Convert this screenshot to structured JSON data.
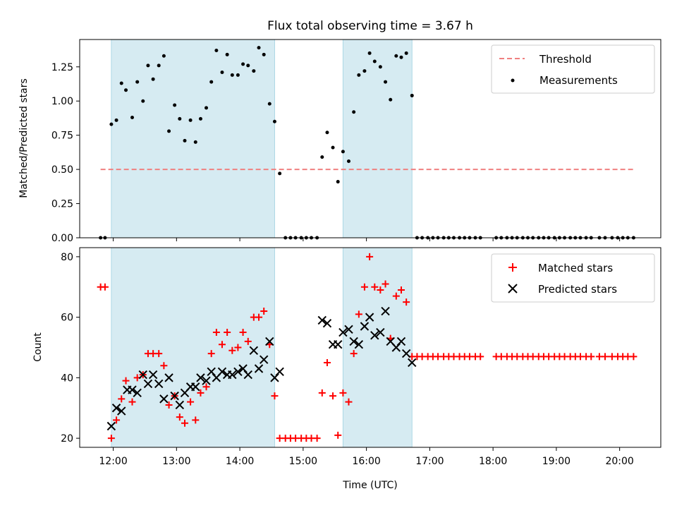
{
  "chart_data": [
    {
      "type": "scatter",
      "title": "Flux total observing time = 3.67 h",
      "ylabel": "Matched/Predicted stars",
      "xlabel": "",
      "xlim_hours": [
        11.47,
        20.65
      ],
      "ylim": [
        0,
        1.45
      ],
      "yticks": [
        "0.00",
        "0.25",
        "0.50",
        "0.75",
        "1.00",
        "1.25"
      ],
      "ytick_values": [
        0,
        0.25,
        0.5,
        0.75,
        1.0,
        1.25
      ],
      "shaded_intervals_hours": [
        [
          11.97,
          14.55
        ],
        [
          15.63,
          16.72
        ]
      ],
      "threshold": {
        "name": "Threshold",
        "value": 0.5,
        "x_range_hours": [
          11.8,
          20.25
        ],
        "color": "#f08080"
      },
      "legend": {
        "position": "top-right",
        "entries": [
          "Threshold",
          "Measurements"
        ]
      },
      "series": [
        {
          "name": "Measurements",
          "color": "#000000",
          "x": [
            11.8,
            11.87,
            11.97,
            12.05,
            12.13,
            12.2,
            12.3,
            12.38,
            12.47,
            12.55,
            12.63,
            12.72,
            12.8,
            12.88,
            12.97,
            13.05,
            13.13,
            13.22,
            13.3,
            13.38,
            13.47,
            13.55,
            13.63,
            13.72,
            13.8,
            13.88,
            13.97,
            14.05,
            14.13,
            14.22,
            14.3,
            14.38,
            14.47,
            14.55,
            14.63,
            14.72,
            14.8,
            14.88,
            14.97,
            15.05,
            15.13,
            15.22,
            15.3,
            15.38,
            15.47,
            15.55,
            15.63,
            15.72,
            15.8,
            15.88,
            15.97,
            16.05,
            16.13,
            16.22,
            16.3,
            16.38,
            16.47,
            16.55,
            16.63,
            16.72,
            16.8,
            16.88,
            16.97,
            17.05,
            17.13,
            17.22,
            17.3,
            17.38,
            17.47,
            17.55,
            17.63,
            17.72,
            17.8,
            18.05,
            18.13,
            18.22,
            18.3,
            18.38,
            18.47,
            18.55,
            18.63,
            18.72,
            18.8,
            18.88,
            18.97,
            19.05,
            19.13,
            19.22,
            19.3,
            19.38,
            19.47,
            19.55,
            19.68,
            19.77,
            19.88,
            19.97,
            20.05,
            20.13,
            20.22
          ],
          "values": [
            0,
            0,
            0.83,
            0.86,
            1.13,
            1.08,
            0.88,
            1.14,
            1.0,
            1.26,
            1.16,
            1.26,
            1.33,
            0.78,
            0.97,
            0.87,
            0.71,
            0.86,
            0.7,
            0.87,
            0.95,
            1.14,
            1.37,
            1.21,
            1.34,
            1.19,
            1.19,
            1.27,
            1.26,
            1.22,
            1.39,
            1.34,
            0.98,
            0.85,
            0.47,
            0,
            0,
            0,
            0,
            0,
            0,
            0,
            0.59,
            0.77,
            0.66,
            0.41,
            0.63,
            0.56,
            0.92,
            1.19,
            1.22,
            1.35,
            1.29,
            1.25,
            1.14,
            1.01,
            1.33,
            1.32,
            1.35,
            1.04,
            0,
            0,
            0,
            0,
            0,
            0,
            0,
            0,
            0,
            0,
            0,
            0,
            0,
            0,
            0,
            0,
            0,
            0,
            0,
            0,
            0,
            0,
            0,
            0,
            0,
            0,
            0,
            0,
            0,
            0,
            0,
            0,
            0,
            0,
            0,
            0,
            0,
            0,
            0
          ]
        }
      ]
    },
    {
      "type": "scatter",
      "title": "",
      "ylabel": "Count",
      "xlabel": "Time (UTC)",
      "xlim_hours": [
        11.47,
        20.65
      ],
      "ylim": [
        17,
        83
      ],
      "yticks": [
        "20",
        "40",
        "60",
        "80"
      ],
      "ytick_values": [
        20,
        40,
        60,
        80
      ],
      "xticks": [
        "12:00",
        "13:00",
        "14:00",
        "15:00",
        "16:00",
        "17:00",
        "18:00",
        "19:00",
        "20:00"
      ],
      "xtick_values_hours": [
        12,
        13,
        14,
        15,
        16,
        17,
        18,
        19,
        20
      ],
      "shaded_intervals_hours": [
        [
          11.97,
          14.55
        ],
        [
          15.63,
          16.72
        ]
      ],
      "legend": {
        "position": "top-right",
        "entries": [
          "Matched stars",
          "Predicted stars"
        ]
      },
      "series": [
        {
          "name": "Matched stars",
          "marker": "plus",
          "color": "#ff0000",
          "x": [
            11.8,
            11.87,
            11.97,
            12.05,
            12.13,
            12.2,
            12.3,
            12.38,
            12.47,
            12.55,
            12.63,
            12.72,
            12.8,
            12.88,
            12.97,
            13.05,
            13.13,
            13.22,
            13.3,
            13.38,
            13.47,
            13.55,
            13.63,
            13.72,
            13.8,
            13.88,
            13.97,
            14.05,
            14.13,
            14.22,
            14.3,
            14.38,
            14.47,
            14.55,
            14.63,
            14.72,
            14.8,
            14.88,
            14.97,
            15.05,
            15.13,
            15.22,
            15.3,
            15.38,
            15.47,
            15.55,
            15.63,
            15.72,
            15.8,
            15.88,
            15.97,
            16.05,
            16.13,
            16.22,
            16.3,
            16.38,
            16.47,
            16.55,
            16.63,
            16.72,
            16.8,
            16.88,
            16.97,
            17.05,
            17.13,
            17.22,
            17.3,
            17.38,
            17.47,
            17.55,
            17.63,
            17.72,
            17.8,
            18.05,
            18.13,
            18.22,
            18.3,
            18.38,
            18.47,
            18.55,
            18.63,
            18.72,
            18.8,
            18.88,
            18.97,
            19.05,
            19.13,
            19.22,
            19.3,
            19.38,
            19.47,
            19.55,
            19.68,
            19.77,
            19.88,
            19.97,
            20.05,
            20.13,
            20.22
          ],
          "values": [
            70,
            70,
            20,
            26,
            33,
            39,
            32,
            40,
            41,
            48,
            48,
            48,
            44,
            31,
            34,
            27,
            25,
            32,
            26,
            35,
            37,
            48,
            55,
            51,
            55,
            49,
            50,
            55,
            52,
            60,
            60,
            62,
            51,
            34,
            20,
            20,
            20,
            20,
            20,
            20,
            20,
            20,
            35,
            45,
            34,
            21,
            35,
            32,
            48,
            61,
            70,
            80,
            70,
            69,
            71,
            53,
            67,
            69,
            65,
            47,
            47,
            47,
            47,
            47,
            47,
            47,
            47,
            47,
            47,
            47,
            47,
            47,
            47,
            47,
            47,
            47,
            47,
            47,
            47,
            47,
            47,
            47,
            47,
            47,
            47,
            47,
            47,
            47,
            47,
            47,
            47,
            47,
            47,
            47,
            47,
            47,
            47,
            47,
            47
          ]
        },
        {
          "name": "Predicted stars",
          "marker": "x",
          "color": "#000000",
          "x": [
            11.97,
            12.05,
            12.13,
            12.22,
            12.3,
            12.38,
            12.47,
            12.55,
            12.63,
            12.72,
            12.8,
            12.88,
            12.97,
            13.05,
            13.13,
            13.22,
            13.3,
            13.38,
            13.47,
            13.55,
            13.63,
            13.72,
            13.8,
            13.88,
            13.97,
            14.05,
            14.13,
            14.22,
            14.3,
            14.38,
            14.47,
            14.55,
            14.63,
            15.3,
            15.38,
            15.47,
            15.55,
            15.63,
            15.72,
            15.8,
            15.88,
            15.97,
            16.05,
            16.13,
            16.22,
            16.3,
            16.38,
            16.47,
            16.55,
            16.63,
            16.72
          ],
          "values": [
            24,
            30,
            29,
            36,
            36,
            35,
            41,
            38,
            41,
            38,
            33,
            40,
            34,
            31,
            35,
            37,
            37,
            40,
            39,
            42,
            40,
            42,
            41,
            41,
            42,
            43,
            41,
            49,
            43,
            46,
            52,
            40,
            42,
            59,
            58,
            51,
            51,
            55,
            56,
            52,
            51,
            57,
            60,
            54,
            55,
            62,
            52,
            50,
            52,
            48,
            45
          ]
        }
      ]
    }
  ]
}
